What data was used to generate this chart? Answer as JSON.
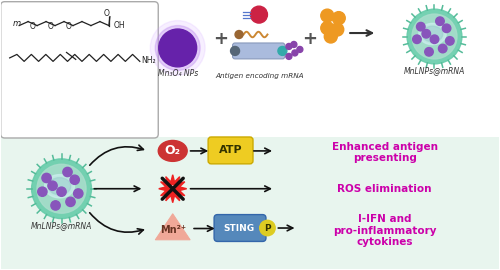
{
  "bg_top": "#ffffff",
  "bg_bottom": "#e8f5ee",
  "text_color_magenta": "#cc00aa",
  "arrow_color": "#222222",
  "o2_color": "#cc3333",
  "atp_color": "#eecc22",
  "atp_border": "#ccaa00",
  "sting_color": "#5588bb",
  "sting_border": "#3366aa",
  "p_color": "#ddcc22",
  "mn_triangle_color": "#f0a898",
  "mn_triangle_border": "#dd8877",
  "ros_color": "#dd2222",
  "cell_outer": "#66ccaa",
  "cell_inner": "#99ddbb",
  "cell_nucleus_bg": "#aaddcc",
  "cell_dot_color": "#8855bb",
  "mn_np_color": "#6622aa",
  "mn_np_glow": "#aa77dd",
  "box_border": "#aaaaaa",
  "chem_box_color": "#f5f5f5",
  "labels": {
    "mn3o4": "Mn₃O₄ NPs",
    "antigen": "Antigen encoding mRNA",
    "mnlnps_top": "MnLNPs@mRNA",
    "mnlnps_bottom": "MnLNPs@mRNA",
    "o2": "O₂",
    "atp": "ATP",
    "mn2": "Mn²⁺",
    "sting": "STING",
    "p_label": "P",
    "enhanced": "Enhanced antigen\npresenting",
    "ros_elim": "ROS elimination",
    "ifn": "I-IFN and\npro-inflammatory\ncytokines"
  },
  "figsize": [
    5.0,
    2.7
  ],
  "dpi": 100
}
